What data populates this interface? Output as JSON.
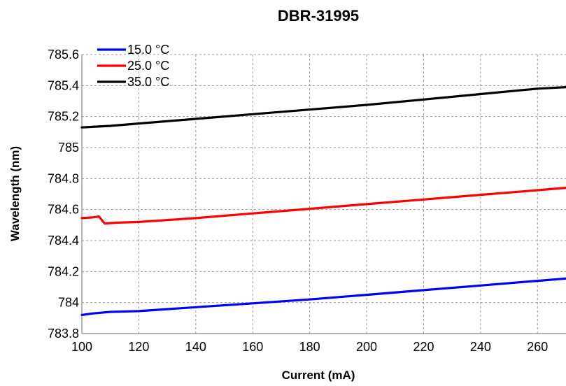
{
  "chart_data": {
    "type": "line",
    "title": "DBR-31995",
    "xlabel": "Current (mA)",
    "ylabel": "Wavelength (nm)",
    "xlim": [
      100,
      270
    ],
    "ylim": [
      783.8,
      785.6
    ],
    "x_ticks": [
      "100",
      "120",
      "140",
      "160",
      "180",
      "200",
      "220",
      "240",
      "260"
    ],
    "y_ticks": [
      "785.6",
      "785.4",
      "785.2",
      "785",
      "784.8",
      "784.6",
      "784.4",
      "784.2",
      "784",
      "783.8"
    ],
    "grid": true,
    "legend_position": "top-left",
    "series": [
      {
        "name": "15.0 °C",
        "color": "#0000ff",
        "points": [
          [
            100,
            783.92
          ],
          [
            104,
            783.93
          ],
          [
            110,
            783.94
          ],
          [
            120,
            783.945
          ],
          [
            140,
            783.97
          ],
          [
            160,
            783.995
          ],
          [
            180,
            784.02
          ],
          [
            200,
            784.05
          ],
          [
            220,
            784.08
          ],
          [
            240,
            784.11
          ],
          [
            260,
            784.14
          ],
          [
            270,
            784.155
          ]
        ]
      },
      {
        "name": "25.0 °C",
        "color": "#ff0000",
        "points": [
          [
            100,
            784.545
          ],
          [
            104,
            784.55
          ],
          [
            106,
            784.555
          ],
          [
            108,
            784.51
          ],
          [
            112,
            784.515
          ],
          [
            120,
            784.52
          ],
          [
            140,
            784.545
          ],
          [
            160,
            784.575
          ],
          [
            180,
            784.605
          ],
          [
            200,
            784.635
          ],
          [
            220,
            784.665
          ],
          [
            240,
            784.695
          ],
          [
            260,
            784.725
          ],
          [
            270,
            784.74
          ]
        ]
      },
      {
        "name": "35.0 °C",
        "color": "#000000",
        "points": [
          [
            100,
            785.13
          ],
          [
            110,
            785.14
          ],
          [
            120,
            785.155
          ],
          [
            140,
            785.185
          ],
          [
            160,
            785.215
          ],
          [
            180,
            785.245
          ],
          [
            200,
            785.275
          ],
          [
            220,
            785.31
          ],
          [
            240,
            785.345
          ],
          [
            260,
            785.38
          ],
          [
            270,
            785.39
          ]
        ]
      }
    ]
  }
}
